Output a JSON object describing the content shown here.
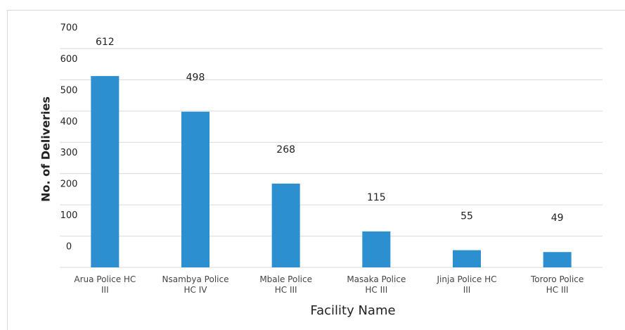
{
  "chart_data": {
    "type": "bar",
    "x_label": "Facility Name",
    "y_label": "No. of Deliveries",
    "categories": [
      "Arua Police HC\nIII",
      "Nsambya Police\nHC IV",
      "Mbale Police\nHC III",
      "Masaka Police\nHC III",
      "Jinja Police HC\nIII",
      "Tororo Police\nHC III"
    ],
    "values": [
      612,
      498,
      268,
      115,
      55,
      49
    ],
    "color": "#2b8fd0",
    "ylim": [
      0,
      700
    ],
    "yticks": [
      0,
      100,
      200,
      300,
      400,
      500,
      600,
      700
    ],
    "grid": true
  }
}
